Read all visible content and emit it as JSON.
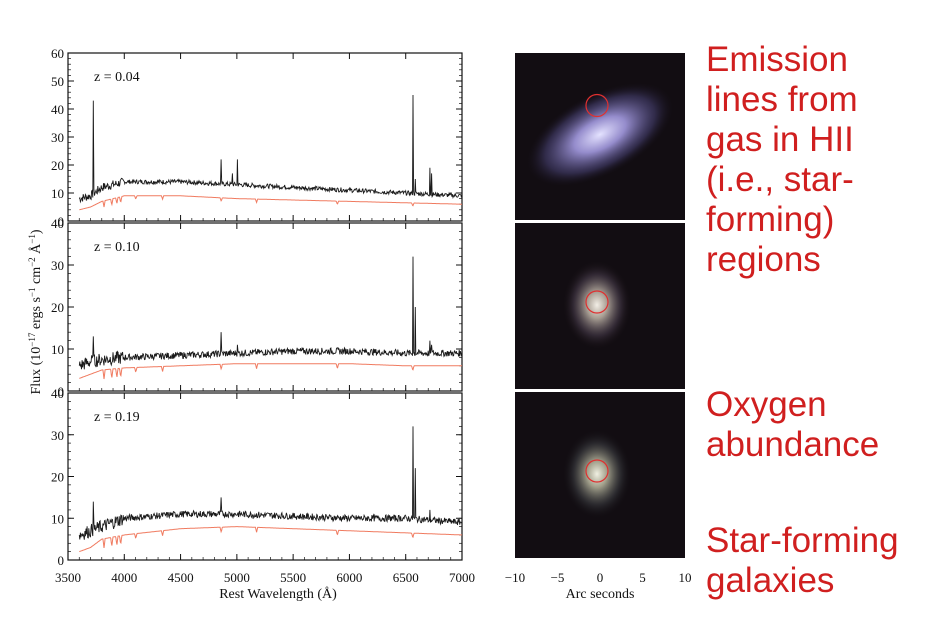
{
  "chart_data": {
    "type": "line",
    "ylabel": "Flux (10^-17 ergs s^-1 cm^-2 Å^-1)",
    "xlabel": "Rest Wavelength (Å)",
    "xlim": [
      3500,
      7000
    ],
    "x_ticks": [
      "3500",
      "4000",
      "4500",
      "5000",
      "5500",
      "6000",
      "6500",
      "7000"
    ],
    "colors": {
      "observed": "#1a1a1a",
      "model": "#f07b60"
    },
    "panels": [
      {
        "label": "z = 0.04",
        "ylim": [
          0,
          60
        ],
        "y_ticks": [
          "0",
          "10",
          "20",
          "30",
          "40",
          "50",
          "60"
        ],
        "series": [
          {
            "x": [
              3500,
              3600,
              3700,
              3800,
              4000,
              4500,
              5000,
              5500,
              6000,
              6500,
              7000
            ],
            "values": [
              6,
              8,
              9,
              12,
              14,
              14,
              13,
              12,
              11,
              10,
              9
            ]
          },
          {
            "x": [
              3500,
              3600,
              3700,
              3800,
              4000,
              4500,
              5000,
              5500,
              6000,
              6500,
              7000
            ],
            "values": [
              3,
              4,
              5,
              7,
              9,
              9,
              8,
              7.5,
              7,
              6.5,
              6
            ]
          }
        ],
        "emission_lines": [
          {
            "x": 3727,
            "peak": 43
          },
          {
            "x": 4861,
            "peak": 22
          },
          {
            "x": 4959,
            "peak": 17
          },
          {
            "x": 5007,
            "peak": 22
          },
          {
            "x": 6563,
            "peak": 45
          },
          {
            "x": 6584,
            "peak": 15
          },
          {
            "x": 6717,
            "peak": 19
          },
          {
            "x": 6731,
            "peak": 17
          }
        ]
      },
      {
        "label": "z = 0.10",
        "ylim": [
          0,
          40
        ],
        "y_ticks": [
          "0",
          "10",
          "20",
          "30",
          "40"
        ],
        "series": [
          {
            "x": [
              3500,
              3600,
              3700,
              3800,
              4000,
              4500,
              5000,
              5500,
              6000,
              6500,
              7000
            ],
            "values": [
              5,
              6,
              7,
              7.5,
              8,
              8.5,
              9,
              9.5,
              9.5,
              9,
              9
            ]
          },
          {
            "x": [
              3500,
              3600,
              3700,
              3800,
              4000,
              4500,
              5000,
              5500,
              6000,
              6500,
              7000
            ],
            "values": [
              2,
              3,
              4,
              5,
              5.5,
              6,
              6.5,
              6.5,
              6.5,
              6,
              6
            ]
          }
        ],
        "emission_lines": [
          {
            "x": 3727,
            "peak": 13
          },
          {
            "x": 4861,
            "peak": 14
          },
          {
            "x": 5007,
            "peak": 11
          },
          {
            "x": 6563,
            "peak": 32
          },
          {
            "x": 6584,
            "peak": 20
          },
          {
            "x": 6717,
            "peak": 12
          },
          {
            "x": 6731,
            "peak": 11
          }
        ]
      },
      {
        "label": "z = 0.19",
        "ylim": [
          0,
          40
        ],
        "y_ticks": [
          "0",
          "10",
          "20",
          "30",
          "40"
        ],
        "series": [
          {
            "x": [
              3500,
              3600,
              3700,
              3800,
              4000,
              4500,
              5000,
              5500,
              6000,
              6500,
              7000
            ],
            "values": [
              5,
              6,
              7,
              8,
              10,
              11,
              11,
              10.5,
              10,
              10,
              9
            ]
          },
          {
            "x": [
              3500,
              3600,
              3700,
              3800,
              4000,
              4500,
              5000,
              5500,
              6000,
              6500,
              7000
            ],
            "values": [
              1,
              2,
              3,
              5,
              6,
              7.5,
              8,
              7.5,
              7,
              6.5,
              6
            ]
          }
        ],
        "emission_lines": [
          {
            "x": 3727,
            "peak": 14
          },
          {
            "x": 4861,
            "peak": 15
          },
          {
            "x": 5007,
            "peak": 11
          },
          {
            "x": 6563,
            "peak": 32
          },
          {
            "x": 6584,
            "peak": 22
          },
          {
            "x": 6717,
            "peak": 12
          }
        ]
      }
    ],
    "images": {
      "xlabel": "Arc seconds",
      "x_ticks": [
        "−10",
        "−5",
        "0",
        "5",
        "10"
      ],
      "xlim": [
        -10,
        10
      ],
      "aperture_color": "#e03030",
      "galaxies": [
        {
          "shape": "inclined-disk",
          "tint": "#8a82c8"
        },
        {
          "shape": "compact",
          "tint": "#b4aaa0"
        },
        {
          "shape": "compact",
          "tint": "#aaa698"
        }
      ]
    }
  },
  "annotations": {
    "emission": [
      "Emission",
      "lines from",
      "gas in HII",
      "(i.e., star-",
      "forming)",
      "regions"
    ],
    "oxygen": [
      "Oxygen",
      "abundance"
    ],
    "starforming": [
      "Star-forming",
      "galaxies"
    ]
  }
}
